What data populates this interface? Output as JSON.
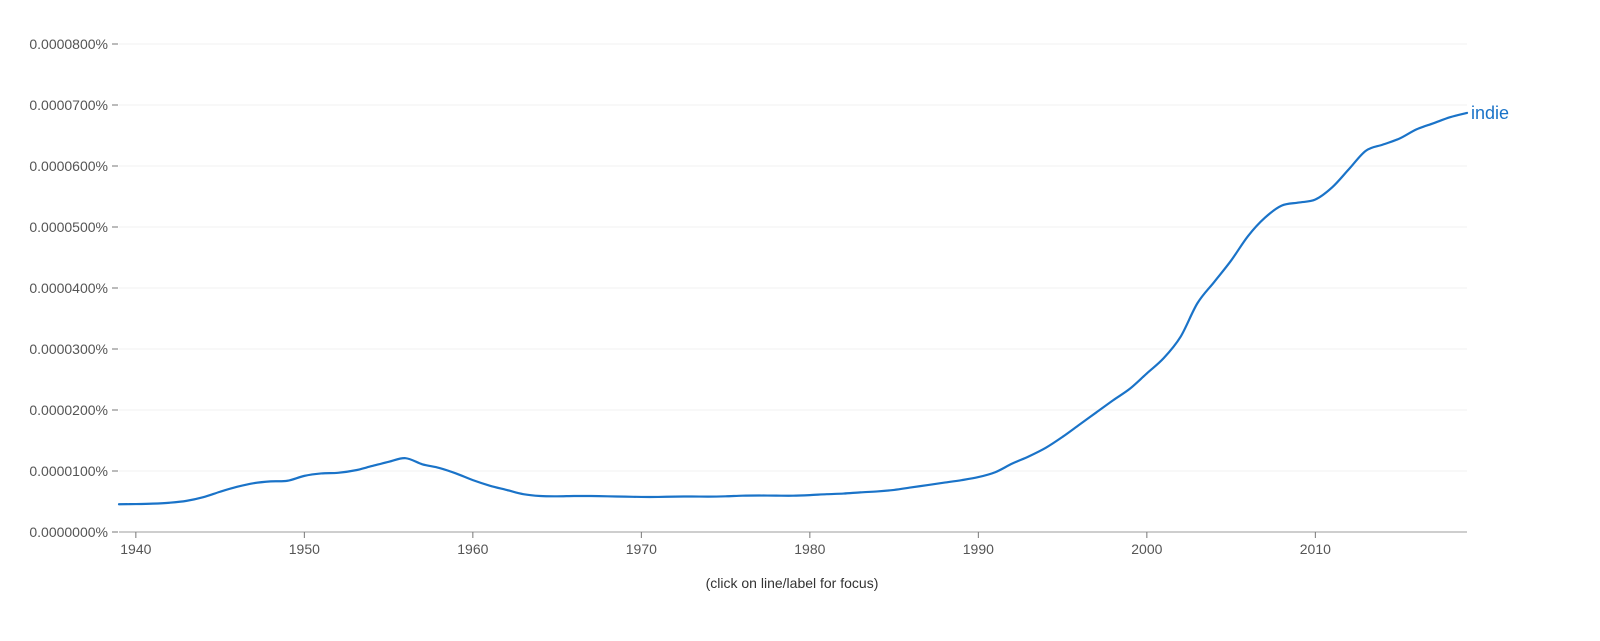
{
  "chart_data": {
    "type": "line",
    "title": "",
    "xlabel": "",
    "ylabel": "",
    "xlim": [
      1939,
      2019
    ],
    "ylim": [
      0,
      8e-07
    ],
    "x_ticks": [
      1940,
      1950,
      1960,
      1970,
      1980,
      1990,
      2000,
      2010
    ],
    "y_ticks": [
      0,
      1e-07,
      2e-07,
      3e-07,
      4e-07,
      5e-07,
      6e-07,
      7e-07,
      8e-07
    ],
    "y_tick_labels": [
      "0.0000000%",
      "0.0000100%",
      "0.0000200%",
      "0.0000300%",
      "0.0000400%",
      "0.0000500%",
      "0.0000600%",
      "0.0000700%",
      "0.0000800%"
    ],
    "grid": true,
    "series": [
      {
        "name": "indie",
        "color": "#1a73c8",
        "x": [
          1939,
          1940,
          1941,
          1942,
          1943,
          1944,
          1945,
          1946,
          1947,
          1948,
          1949,
          1950,
          1951,
          1952,
          1953,
          1954,
          1955,
          1956,
          1957,
          1958,
          1959,
          1960,
          1961,
          1962,
          1963,
          1964,
          1965,
          1966,
          1967,
          1968,
          1969,
          1970,
          1971,
          1972,
          1973,
          1974,
          1975,
          1976,
          1977,
          1978,
          1979,
          1980,
          1981,
          1982,
          1983,
          1984,
          1985,
          1986,
          1987,
          1988,
          1989,
          1990,
          1991,
          1992,
          1993,
          1994,
          1995,
          1996,
          1997,
          1998,
          1999,
          2000,
          2001,
          2002,
          2003,
          2004,
          2005,
          2006,
          2007,
          2008,
          2009,
          2010,
          2011,
          2012,
          2013,
          2014,
          2015,
          2016,
          2017,
          2018,
          2019
        ],
        "y": [
          4.55e-08,
          4.58e-08,
          4.65e-08,
          4.8e-08,
          5.1e-08,
          5.7e-08,
          6.6e-08,
          7.4e-08,
          8e-08,
          8.3e-08,
          8.4e-08,
          9.2e-08,
          9.6e-08,
          9.7e-08,
          1.01e-07,
          1.08e-07,
          1.15e-07,
          1.21e-07,
          1.11e-07,
          1.05e-07,
          9.6e-08,
          8.5e-08,
          7.6e-08,
          6.9e-08,
          6.2e-08,
          5.9e-08,
          5.85e-08,
          5.9e-08,
          5.9e-08,
          5.85e-08,
          5.8e-08,
          5.75e-08,
          5.75e-08,
          5.8e-08,
          5.82e-08,
          5.8e-08,
          5.85e-08,
          5.95e-08,
          5.98e-08,
          5.96e-08,
          5.95e-08,
          6.05e-08,
          6.2e-08,
          6.3e-08,
          6.5e-08,
          6.65e-08,
          6.9e-08,
          7.3e-08,
          7.7e-08,
          8.1e-08,
          8.5e-08,
          9e-08,
          9.8e-08,
          1.12e-07,
          1.24e-07,
          1.38e-07,
          1.56e-07,
          1.76e-07,
          1.96e-07,
          2.16e-07,
          2.35e-07,
          2.6e-07,
          2.85e-07,
          3.2e-07,
          3.75e-07,
          4.1e-07,
          4.45e-07,
          4.85e-07,
          5.15e-07,
          5.35e-07,
          5.4e-07,
          5.45e-07,
          5.65e-07,
          5.95e-07,
          6.25e-07,
          6.35e-07,
          6.45e-07,
          6.6e-07,
          6.7e-07,
          6.8e-07,
          6.87e-07
        ]
      }
    ],
    "annotation": "(click on line/label for focus)"
  }
}
